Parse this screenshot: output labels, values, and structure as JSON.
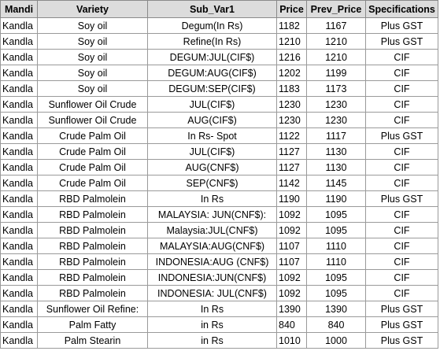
{
  "table": {
    "headers": [
      "Mandi",
      "Variety",
      "Sub_Var1",
      "Price",
      "Prev_Price",
      "Specifications"
    ],
    "rows": [
      [
        "Kandla",
        "Soy oil",
        "Degum(In Rs)",
        "1182",
        "1167",
        "Plus GST"
      ],
      [
        "Kandla",
        "Soy oil",
        "Refine(In Rs)",
        "1210",
        "1210",
        "Plus GST"
      ],
      [
        "Kandla",
        "Soy oil",
        "DEGUM:JUL(CIF$)",
        "1216",
        "1210",
        "CIF"
      ],
      [
        "Kandla",
        "Soy oil",
        "DEGUM:AUG(CIF$)",
        "1202",
        "1199",
        "CIF"
      ],
      [
        "Kandla",
        "Soy oil",
        "DEGUM:SEP(CIF$)",
        "1183",
        "1173",
        "CIF"
      ],
      [
        "Kandla",
        "Sunflower Oil Crude",
        "JUL(CIF$)",
        "1230",
        "1230",
        "CIF"
      ],
      [
        "Kandla",
        "Sunflower Oil Crude",
        "AUG(CIF$)",
        "1230",
        "1230",
        "CIF"
      ],
      [
        "Kandla",
        "Crude Palm Oil",
        "In Rs- Spot",
        "1122",
        "1117",
        "Plus GST"
      ],
      [
        "Kandla",
        "Crude Palm Oil",
        "JUL(CIF$)",
        "1127",
        "1130",
        "CIF"
      ],
      [
        "Kandla",
        "Crude Palm Oil",
        "AUG(CNF$)",
        "1127",
        "1130",
        "CIF"
      ],
      [
        "Kandla",
        "Crude Palm Oil",
        "SEP(CNF$)",
        "1142",
        "1145",
        "CIF"
      ],
      [
        "Kandla",
        "RBD Palmolein",
        "In Rs",
        "1190",
        "1190",
        "Plus GST"
      ],
      [
        "Kandla",
        "RBD Palmolein",
        "MALAYSIA: JUN(CNF$):",
        "1092",
        "1095",
        "CIF"
      ],
      [
        "Kandla",
        "RBD Palmolein",
        "Malaysia:JUL(CNF$)",
        "1092",
        "1095",
        "CIF"
      ],
      [
        "Kandla",
        "RBD Palmolein",
        "MALAYSIA:AUG(CNF$)",
        "1107",
        "1110",
        "CIF"
      ],
      [
        "Kandla",
        "RBD Palmolein",
        "INDONESIA:AUG (CNF$)",
        "1107",
        "1110",
        "CIF"
      ],
      [
        "Kandla",
        "RBD Palmolein",
        "INDONESIA:JUN(CNF$)",
        "1092",
        "1095",
        "CIF"
      ],
      [
        "Kandla",
        "RBD Palmolein",
        "INDONESIA: JUL(CNF$)",
        "1092",
        "1095",
        "CIF"
      ],
      [
        "Kandla",
        "Sunflower Oil Refine:",
        "In Rs",
        "1390",
        "1390",
        "Plus GST"
      ],
      [
        "Kandla",
        "Palm Fatty",
        "in Rs",
        "840",
        "840",
        "Plus GST"
      ],
      [
        "Kandla",
        "Palm Stearin",
        "in Rs",
        "1010",
        "1000",
        "Plus GST"
      ]
    ]
  }
}
